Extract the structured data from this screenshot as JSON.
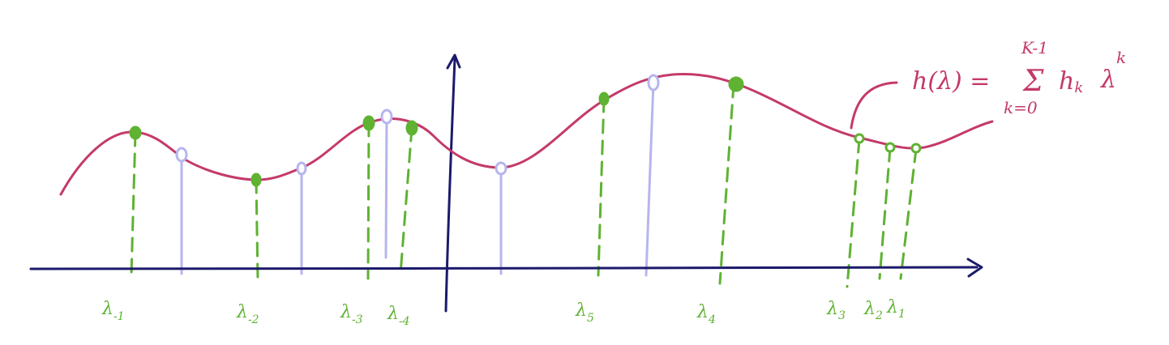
{
  "colors": {
    "curve": "#c43a6a",
    "axis": "#1c1a6b",
    "green": "#5fb232",
    "lavender": "#b7b5ee",
    "background": "#ffffff"
  },
  "formula": {
    "lhs": "h(λ) =",
    "sum": "Σ",
    "upper": "K-1",
    "lower": "k=0",
    "term_coef": "h",
    "term_coef_sub": "k",
    "term_var": "λ",
    "term_exp": "k"
  },
  "labels": [
    {
      "id": "lam-m1",
      "main": "λ",
      "sub": "-1"
    },
    {
      "id": "lam-m2",
      "main": "λ",
      "sub": "-2"
    },
    {
      "id": "lam-m3",
      "main": "λ",
      "sub": "-3"
    },
    {
      "id": "lam-m4",
      "main": "λ",
      "sub": "-4"
    },
    {
      "id": "lam-5",
      "main": "λ",
      "sub": "5"
    },
    {
      "id": "lam-4",
      "main": "λ",
      "sub": "4"
    },
    {
      "id": "lam-3",
      "main": "λ",
      "sub": "3"
    },
    {
      "id": "lam-2",
      "main": "λ",
      "sub": "2"
    },
    {
      "id": "lam-1",
      "main": "λ",
      "sub": "1"
    }
  ]
}
